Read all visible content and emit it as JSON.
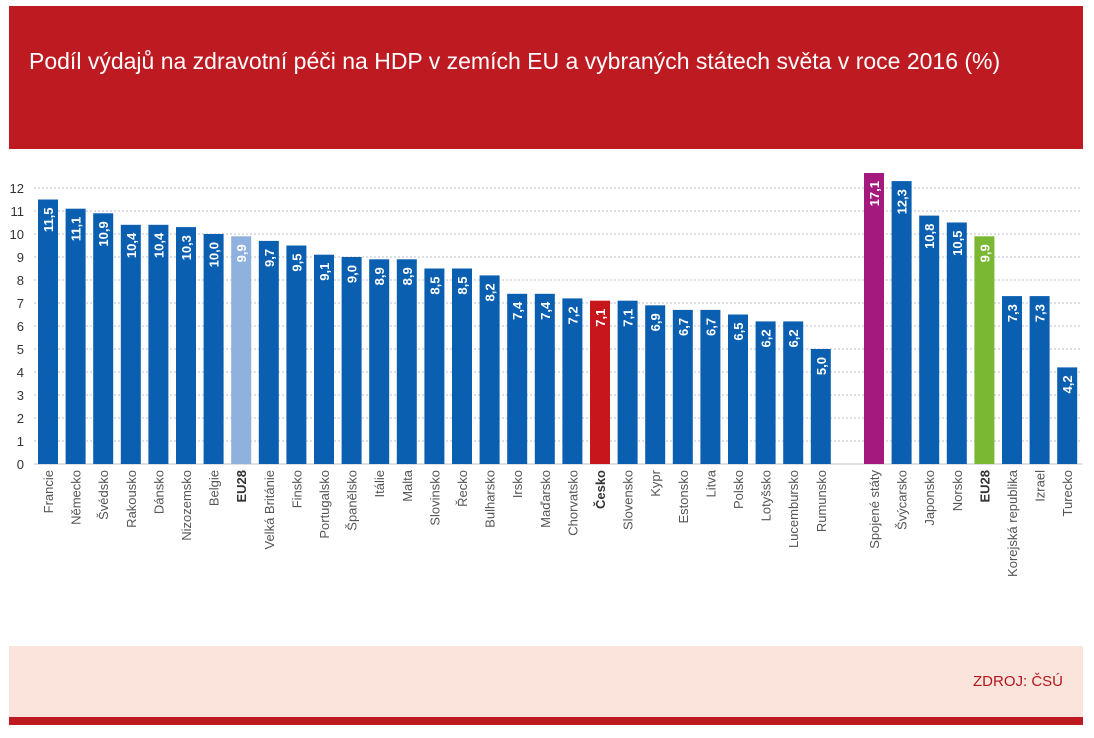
{
  "header": {
    "title": "Podíl výdajů na zdravotní péči na HDP v zemích EU a vybraných státech světa v roce 2016 (%)"
  },
  "footer": {
    "source": "ZDROJ: ČSÚ"
  },
  "colors": {
    "header_bg": "#bd1a21",
    "footer_bg": "#fbe4dc",
    "source_text": "#b3141c",
    "bar_default": "#0a5fb0",
    "bar_eu28": "#8fb1de",
    "bar_czech": "#c8161d",
    "bar_usa": "#a3197e",
    "bar_eu28_world": "#7ab733"
  },
  "chart_data": {
    "type": "bar",
    "title": "",
    "xlabel": "",
    "ylabel": "",
    "ylim": [
      0,
      12
    ],
    "yticks": [
      "0",
      "1",
      "2",
      "3",
      "4",
      "5",
      "6",
      "7",
      "8",
      "9",
      "10",
      "11",
      "12"
    ],
    "grid": true,
    "bar_value_labels": "vertical inside bars",
    "groups": [
      {
        "name": "EU",
        "categories": [
          "Francie",
          "Německo",
          "Švédsko",
          "Rakousko",
          "Dánsko",
          "Nizozemsko",
          "Belgie",
          "EU28",
          "Velká Británie",
          "Finsko",
          "Portugalsko",
          "Španělsko",
          "Itálie",
          "Malta",
          "Slovinsko",
          "Řecko",
          "Bulharsko",
          "Irsko",
          "Maďarsko",
          "Chorvatsko",
          "Česko",
          "Slovensko",
          "Kypr",
          "Estonsko",
          "Litva",
          "Polsko",
          "Lotyšsko",
          "Lucembursko",
          "Rumunsko"
        ],
        "values": [
          11.5,
          11.1,
          10.9,
          10.4,
          10.4,
          10.3,
          10.0,
          9.9,
          9.7,
          9.5,
          9.1,
          9.0,
          8.9,
          8.9,
          8.5,
          8.5,
          8.2,
          7.4,
          7.4,
          7.2,
          7.1,
          7.1,
          6.9,
          6.7,
          6.7,
          6.5,
          6.2,
          6.2,
          5.0
        ],
        "value_labels": [
          "11,5",
          "11,1",
          "10,9",
          "10,4",
          "10,4",
          "10,3",
          "10,0",
          "9,9",
          "9,7",
          "9,5",
          "9,1",
          "9,0",
          "8,9",
          "8,9",
          "8,5",
          "8,5",
          "8,2",
          "7,4",
          "7,4",
          "7,2",
          "7,1",
          "7,1",
          "6,9",
          "6,7",
          "6,7",
          "6,5",
          "6,2",
          "6,2",
          "5,0"
        ],
        "highlights": {
          "EU28": "bar_eu28",
          "Česko": "bar_czech"
        }
      },
      {
        "name": "World",
        "categories": [
          "Spojené státy",
          "Švýcarsko",
          "Japonsko",
          "Norsko",
          "EU28",
          "Korejská republika",
          "Izrael",
          "Turecko"
        ],
        "values": [
          17.1,
          12.3,
          10.8,
          10.5,
          9.9,
          7.3,
          7.3,
          4.2
        ],
        "value_labels": [
          "17,1",
          "12,3",
          "10,8",
          "10,5",
          "9,9",
          "7,3",
          "7,3",
          "4,2"
        ],
        "highlights": {
          "Spojené státy": "bar_usa",
          "EU28": "bar_eu28_world"
        }
      }
    ],
    "bold_categories": [
      "EU28",
      "Česko"
    ]
  }
}
